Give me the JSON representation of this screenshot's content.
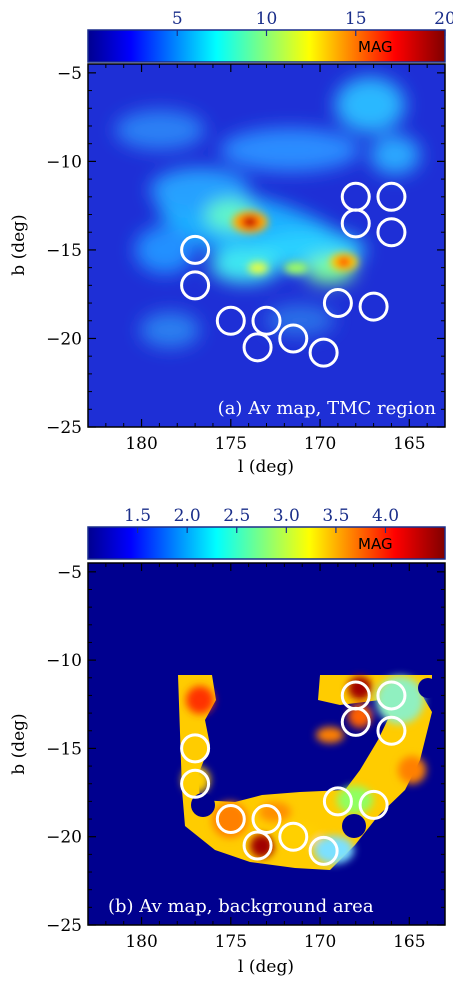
{
  "chart_data": [
    {
      "type": "heatmap",
      "caption": "(a) Av map, TMC region",
      "xlabel": "l (deg)",
      "ylabel": "b (deg)",
      "xlim": [
        183,
        163
      ],
      "ylim": [
        -25,
        -4.5
      ],
      "xticks": [
        180,
        175,
        170,
        165
      ],
      "yticks": [
        -5,
        -10,
        -15,
        -20,
        -25
      ],
      "colorbar": {
        "label": "MAG",
        "range": [
          0,
          20
        ],
        "ticks": [
          "5",
          "10",
          "15",
          "20"
        ],
        "tick_values": [
          5,
          10,
          15,
          20
        ]
      },
      "peaks": [
        {
          "l": 173.5,
          "b": -13.8,
          "level": 1.0
        },
        {
          "l": 169.0,
          "b": -16.0,
          "level": 0.85
        },
        {
          "l": 171.5,
          "b": -16.5,
          "level": 0.6
        },
        {
          "l": 174.5,
          "b": -16.0,
          "level": 0.55
        },
        {
          "l": 171.0,
          "b": -13.5,
          "level": 0.45
        },
        {
          "l": 177.5,
          "b": -11.0,
          "level": 0.4
        },
        {
          "l": 168.0,
          "b": -6.5,
          "level": 0.45
        },
        {
          "l": 175.5,
          "b": -8.5,
          "level": 0.35
        }
      ],
      "circles": [
        {
          "l": 168.0,
          "b": -12.0
        },
        {
          "l": 166.0,
          "b": -12.0
        },
        {
          "l": 168.0,
          "b": -13.5
        },
        {
          "l": 166.0,
          "b": -14.0
        },
        {
          "l": 177.0,
          "b": -15.0
        },
        {
          "l": 177.0,
          "b": -17.0
        },
        {
          "l": 169.0,
          "b": -18.0
        },
        {
          "l": 167.0,
          "b": -18.2
        },
        {
          "l": 175.0,
          "b": -19.0
        },
        {
          "l": 173.0,
          "b": -19.0
        },
        {
          "l": 173.5,
          "b": -20.5
        },
        {
          "l": 171.5,
          "b": -20.0
        },
        {
          "l": 169.8,
          "b": -20.8
        }
      ]
    },
    {
      "type": "heatmap",
      "caption": "(b) Av map, background area",
      "xlabel": "l (deg)",
      "ylabel": "b (deg)",
      "xlim": [
        183,
        163
      ],
      "ylim": [
        -25,
        -4.5
      ],
      "xticks": [
        180,
        175,
        170,
        165
      ],
      "yticks": [
        -5,
        -10,
        -15,
        -20,
        -25
      ],
      "colorbar": {
        "label": "MAG",
        "range": [
          1.0,
          4.6
        ],
        "ticks": [
          "1.5",
          "2.0",
          "2.5",
          "3.0",
          "3.5",
          "4.0"
        ],
        "tick_values": [
          1.5,
          2.0,
          2.5,
          3.0,
          3.5,
          4.0
        ]
      },
      "circles": [
        {
          "l": 168.0,
          "b": -12.0
        },
        {
          "l": 166.0,
          "b": -12.0
        },
        {
          "l": 168.0,
          "b": -13.5
        },
        {
          "l": 166.0,
          "b": -14.0
        },
        {
          "l": 177.0,
          "b": -15.0
        },
        {
          "l": 177.0,
          "b": -17.0
        },
        {
          "l": 169.0,
          "b": -18.0
        },
        {
          "l": 167.0,
          "b": -18.2
        },
        {
          "l": 175.0,
          "b": -19.0
        },
        {
          "l": 173.0,
          "b": -19.0
        },
        {
          "l": 173.5,
          "b": -20.5
        },
        {
          "l": 171.5,
          "b": -20.0
        },
        {
          "l": 169.8,
          "b": -20.8
        }
      ]
    }
  ]
}
